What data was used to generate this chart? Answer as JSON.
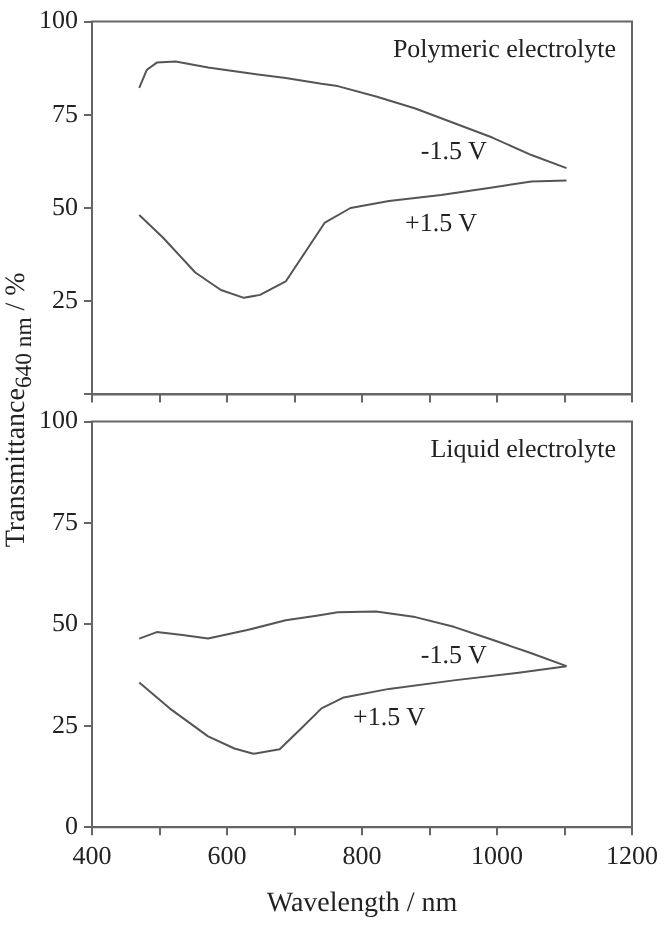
{
  "chart_data": [
    {
      "type": "line",
      "title": "Polymeric electrolyte",
      "ylabel": "Transmittance$_{640 nm}$ / %",
      "xlim": [
        400,
        1200
      ],
      "xticks": [
        400,
        {
          "value": 500,
          "label": null
        },
        600,
        {
          "value": 700,
          "label": null
        },
        800,
        {
          "value": 900,
          "label": null
        },
        1000,
        {
          "value": 1100,
          "label": null
        },
        1200
      ],
      "ylim": [
        0,
        100
      ],
      "yticks": [
        {
          "value": 0,
          "label": null
        },
        25,
        50,
        75,
        100
      ],
      "tick_labels": "y",
      "series": [
        {
          "name": "-1.5 V",
          "color": "#555555",
          "x": [
            470,
            481,
            496,
            524,
            572,
            630,
            687,
            740,
            764,
            821,
            879,
            936,
            993,
            1051,
            1103
          ],
          "values": [
            82.2,
            87,
            89,
            89.3,
            87.7,
            86.2,
            84.9,
            83.3,
            82.7,
            79.9,
            76.7,
            72.8,
            68.9,
            64.2,
            60.7
          ]
        },
        {
          "name": "+1.5 V",
          "color": "#555555",
          "x": [
            470,
            505,
            553,
            591,
            625,
            649,
            687,
            716,
            745,
            783,
            840,
            917,
            993,
            1051,
            1103
          ],
          "values": [
            48.1,
            42.1,
            32.7,
            28,
            25.9,
            26.7,
            30.3,
            38.2,
            46.1,
            50,
            51.9,
            53.5,
            55.5,
            57.1,
            57.4
          ]
        }
      ]
    },
    {
      "type": "line",
      "title": "Liquid electrolyte",
      "xlabel": "Wavelength / nm",
      "xlim": [
        400,
        1200
      ],
      "xticks": [
        400,
        {
          "value": 500,
          "label": null
        },
        600,
        {
          "value": 700,
          "label": null
        },
        800,
        {
          "value": 900,
          "label": null
        },
        1000,
        {
          "value": 1100,
          "label": null
        },
        1200
      ],
      "ylim": [
        0,
        100
      ],
      "yticks": [
        0,
        25,
        50,
        75,
        100
      ],
      "series": [
        {
          "name": "-1.5 V",
          "color": "#555555",
          "x": [
            470,
            496,
            534,
            572,
            630,
            687,
            735,
            764,
            821,
            879,
            936,
            993,
            1051,
            1103
          ],
          "values": [
            46.5,
            48.1,
            47.4,
            46.5,
            48.6,
            51,
            52.2,
            53,
            53.2,
            51.8,
            49.4,
            46.2,
            42.9,
            39.7
          ]
        },
        {
          "name": "+1.5 V",
          "color": "#555555",
          "x": [
            470,
            515,
            572,
            611,
            639,
            678,
            706,
            740,
            773,
            840,
            936,
            1032,
            1103
          ],
          "values": [
            35.7,
            29.3,
            22.4,
            19.4,
            18.1,
            19.2,
            23.7,
            29.3,
            32,
            34.1,
            36.2,
            38.1,
            39.7
          ]
        }
      ]
    }
  ]
}
